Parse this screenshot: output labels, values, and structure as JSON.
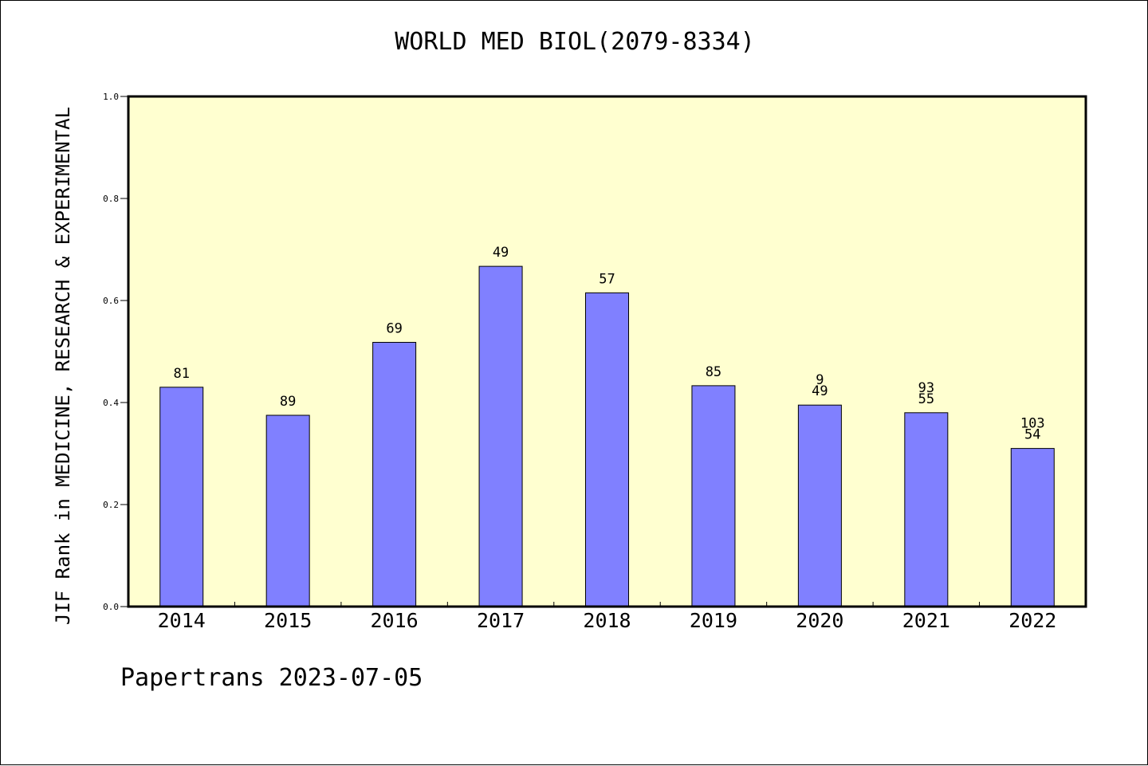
{
  "colors": {
    "plot_background": "#ffffd0",
    "bar_fill": "#8080ff",
    "bar_stroke": "#000000",
    "axis": "#000000"
  },
  "footer": "Papertrans 2023-07-05",
  "chart_data": {
    "type": "bar",
    "title": "WORLD MED BIOL(2079-8334)",
    "xlabel": "",
    "ylabel": "JIF Rank in MEDICINE, RESEARCH & EXPERIMENTAL",
    "ylim": [
      0,
      1.0
    ],
    "yticks": [
      "0.0",
      "0.2",
      "0.4",
      "0.6",
      "0.8",
      "1.0"
    ],
    "grid": false,
    "categories": [
      "2014",
      "2015",
      "2016",
      "2017",
      "2018",
      "2019",
      "2020",
      "2021",
      "2022"
    ],
    "values": [
      0.43,
      0.375,
      0.518,
      0.667,
      0.615,
      0.433,
      0.395,
      0.38,
      0.31
    ],
    "bar_labels": [
      [
        "81"
      ],
      [
        "89"
      ],
      [
        "69"
      ],
      [
        "49"
      ],
      [
        "57"
      ],
      [
        "85"
      ],
      [
        "9",
        "49"
      ],
      [
        "93",
        "55"
      ],
      [
        "103",
        "54"
      ]
    ]
  }
}
